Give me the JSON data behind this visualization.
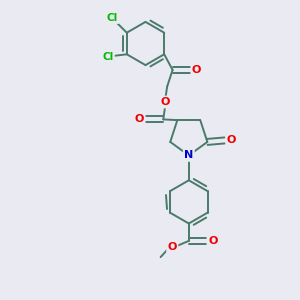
{
  "background_color": "#eaeaf2",
  "bond_color": "#4a7a6a",
  "bond_width": 1.4,
  "atom_colors": {
    "O": "#ee0000",
    "N": "#0000cc",
    "Cl": "#00bb00"
  },
  "font_size": 8.0,
  "figsize": [
    3.0,
    3.0
  ],
  "dpi": 100,
  "xlim": [
    0,
    10
  ],
  "ylim": [
    0,
    10
  ]
}
